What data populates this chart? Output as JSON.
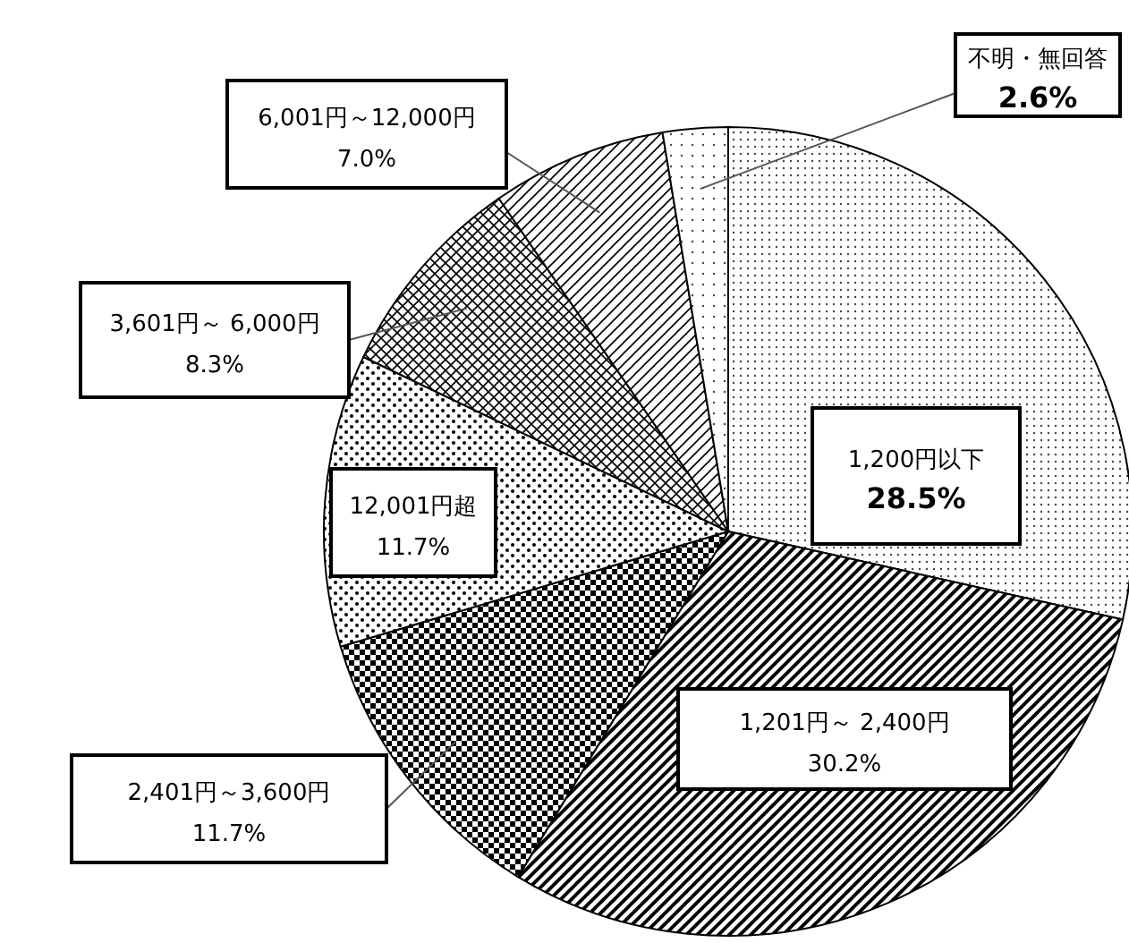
{
  "chart_data": {
    "type": "pie",
    "categories": [
      "1,200円以下",
      "1,201円～ 2,400円",
      "2,401円～3,600円",
      "12,001円超",
      "3,601円～ 6,000円",
      "6,001円～12,000円",
      "不明・無回答"
    ],
    "values": [
      28.5,
      30.2,
      11.7,
      11.7,
      8.3,
      7.0,
      2.6
    ],
    "value_labels": [
      "28.5%",
      "30.2%",
      "11.7%",
      "11.7%",
      "8.3%",
      "7.0%",
      "2.6%"
    ]
  }
}
